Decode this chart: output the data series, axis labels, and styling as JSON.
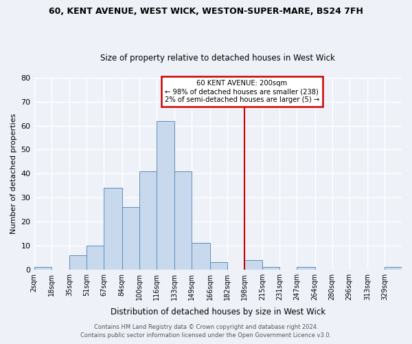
{
  "title_line1": "60, KENT AVENUE, WEST WICK, WESTON-SUPER-MARE, BS24 7FH",
  "title_line2": "Size of property relative to detached houses in West Wick",
  "xlabel": "Distribution of detached houses by size in West Wick",
  "ylabel": "Number of detached properties",
  "bin_labels": [
    "2sqm",
    "18sqm",
    "35sqm",
    "51sqm",
    "67sqm",
    "84sqm",
    "100sqm",
    "116sqm",
    "133sqm",
    "149sqm",
    "166sqm",
    "182sqm",
    "198sqm",
    "215sqm",
    "231sqm",
    "247sqm",
    "264sqm",
    "280sqm",
    "296sqm",
    "313sqm",
    "329sqm"
  ],
  "bin_edges": [
    2,
    18,
    35,
    51,
    67,
    84,
    100,
    116,
    133,
    149,
    166,
    182,
    198,
    215,
    231,
    247,
    264,
    280,
    296,
    313,
    329
  ],
  "bar_heights": [
    1,
    0,
    6,
    10,
    34,
    26,
    41,
    62,
    41,
    11,
    3,
    0,
    4,
    1,
    0,
    1,
    0,
    0,
    0,
    0,
    1
  ],
  "bar_color": "#c8d9ed",
  "bar_edge_color": "#5b8db8",
  "vline_x": 198,
  "vline_color": "#cc0000",
  "annotation_title": "60 KENT AVENUE: 200sqm",
  "annotation_line1": "← 98% of detached houses are smaller (238)",
  "annotation_line2": "2% of semi-detached houses are larger (5) →",
  "annotation_box_color": "#cc0000",
  "ylim": [
    0,
    80
  ],
  "yticks": [
    0,
    10,
    20,
    30,
    40,
    50,
    60,
    70,
    80
  ],
  "footer_line1": "Contains HM Land Registry data © Crown copyright and database right 2024.",
  "footer_line2": "Contains public sector information licensed under the Open Government Licence v3.0.",
  "bg_color": "#eef2f8",
  "grid_color": "#ffffff"
}
